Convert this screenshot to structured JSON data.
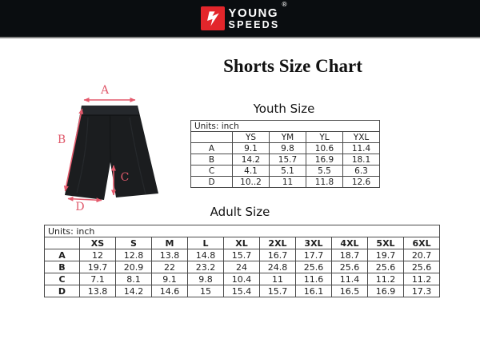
{
  "brand": {
    "line1": "YOUNG",
    "line2": "SPEEDS",
    "registered": "®"
  },
  "title": "Shorts Size Chart",
  "diagram": {
    "labels": [
      "A",
      "B",
      "C",
      "D"
    ]
  },
  "chart_data": [
    {
      "type": "table",
      "title": "Youth Size",
      "units_label": "Units: inch",
      "columns": [
        "YS",
        "YM",
        "YL",
        "YXL"
      ],
      "rows": [
        {
          "label": "A",
          "values": [
            "9.1",
            "9.8",
            "10.6",
            "11.4"
          ]
        },
        {
          "label": "B",
          "values": [
            "14.2",
            "15.7",
            "16.9",
            "18.1"
          ]
        },
        {
          "label": "C",
          "values": [
            "4.1",
            "5.1",
            "5.5",
            "6.3"
          ]
        },
        {
          "label": "D",
          "values": [
            "10..2",
            "11",
            "11.8",
            "12.6"
          ]
        }
      ]
    },
    {
      "type": "table",
      "title": "Adult Size",
      "units_label": "Units: inch",
      "columns": [
        "XS",
        "S",
        "M",
        "L",
        "XL",
        "2XL",
        "3XL",
        "4XL",
        "5XL",
        "6XL"
      ],
      "rows": [
        {
          "label": "A",
          "values": [
            "12",
            "12.8",
            "13.8",
            "14.8",
            "15.7",
            "16.7",
            "17.7",
            "18.7",
            "19.7",
            "20.7"
          ]
        },
        {
          "label": "B",
          "values": [
            "19.7",
            "20.9",
            "22",
            "23.2",
            "24",
            "24.8",
            "25.6",
            "25.6",
            "25.6",
            "25.6"
          ]
        },
        {
          "label": "C",
          "values": [
            "7.1",
            "8.1",
            "9.1",
            "9.8",
            "10.4",
            "11",
            "11.6",
            "11.4",
            "11.2",
            "11.2"
          ]
        },
        {
          "label": "D",
          "values": [
            "13.8",
            "14.2",
            "14.6",
            "15",
            "15.4",
            "15.7",
            "16.1",
            "16.5",
            "16.9",
            "17.3"
          ]
        }
      ]
    }
  ],
  "colors": {
    "brand_red": "#e3262b",
    "arrow_pink": "#e45a6c",
    "bar_black": "#0a0d10",
    "table_border": "#4a4a4a"
  }
}
